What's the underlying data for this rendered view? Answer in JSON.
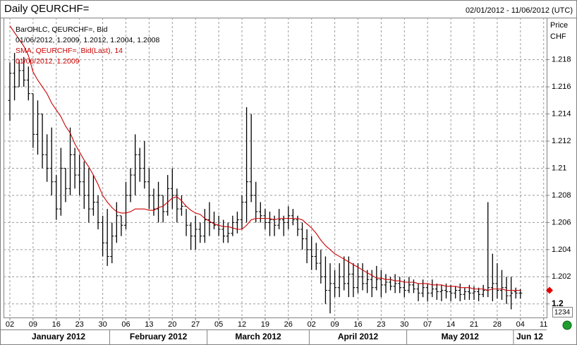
{
  "chart_data": {
    "type": "ohlc",
    "title": "Daily QEURCHF=",
    "subtitle": "02/01/2012 - 11/06/2012 (UTC)",
    "legend": [
      "BarOHLC, QEURCHF=, Bid",
      "01/06/2012, 1.2009, 1.2012, 1.2004, 1.2008",
      "SMA, QEURCHF=, Bid(Last),  14",
      "01/06/2012, 1.2009"
    ],
    "ylabel": "Price",
    "yunit": "CHF",
    "ylim": [
      1.199,
      1.2211
    ],
    "yticks": [
      1.2,
      1.202,
      1.204,
      1.206,
      1.208,
      1.21,
      1.212,
      1.214,
      1.216,
      1.218
    ],
    "grid": true,
    "months": [
      "January 2012",
      "February 2012",
      "March 2012",
      "April 2012",
      "May 2012",
      "Jun 12"
    ],
    "badge": "1234",
    "categories": [
      "02",
      null,
      null,
      null,
      null,
      "09",
      null,
      null,
      null,
      null,
      "16",
      null,
      null,
      null,
      null,
      "23",
      null,
      null,
      null,
      null,
      "30",
      null,
      null,
      null,
      null,
      "06",
      null,
      null,
      null,
      null,
      "13",
      null,
      null,
      null,
      null,
      "20",
      null,
      null,
      null,
      null,
      "27",
      null,
      null,
      null,
      null,
      "05",
      null,
      null,
      null,
      null,
      "12",
      null,
      null,
      null,
      null,
      "19",
      null,
      null,
      null,
      null,
      "26",
      null,
      null,
      null,
      null,
      "02",
      null,
      null,
      null,
      null,
      "09",
      null,
      null,
      null,
      null,
      "16",
      null,
      null,
      null,
      null,
      "23",
      null,
      null,
      null,
      null,
      "30",
      null,
      null,
      null,
      null,
      "07",
      null,
      null,
      null,
      null,
      "14",
      null,
      null,
      null,
      null,
      "21",
      null,
      null,
      null,
      null,
      "28",
      null,
      null,
      null,
      null,
      "04",
      null,
      null,
      null,
      null,
      "11"
    ],
    "ohlc": {
      "color": "#000000",
      "open": [
        1.215,
        1.217,
        1.216,
        1.2172,
        1.2165,
        1.2155,
        1.2125,
        1.214,
        1.211,
        1.21,
        1.209,
        1.207,
        1.21,
        1.2085,
        1.211,
        1.2095,
        1.209,
        1.208,
        1.207,
        1.2075,
        1.206,
        1.2045,
        1.2035,
        1.205,
        1.2065,
        1.2058,
        1.208,
        1.2095,
        1.211,
        1.21,
        1.209,
        1.208,
        1.207,
        1.208,
        1.2068,
        1.2085,
        1.208,
        1.207,
        1.2072,
        1.2058,
        1.205,
        1.2055,
        1.205,
        1.2062,
        1.206,
        1.2058,
        1.2055,
        1.205,
        1.2052,
        1.206,
        1.2062,
        1.2075,
        1.209,
        1.208,
        1.2068,
        1.2065,
        1.206,
        1.2062,
        1.2058,
        1.2062,
        1.206,
        1.2065,
        1.2062,
        1.2055,
        1.2048,
        1.204,
        1.2035,
        1.203,
        1.202,
        1.201,
        1.2015,
        1.2012,
        1.202,
        1.2015,
        1.2022,
        1.2012,
        1.202,
        1.2015,
        1.2018,
        1.2012,
        1.2018,
        1.2014,
        1.2016,
        1.2013,
        1.2015,
        1.2012,
        1.201,
        1.2014,
        1.2011,
        1.2008,
        1.2012,
        1.2008,
        1.2011,
        1.2009,
        1.201,
        1.2009,
        1.2008,
        1.201,
        1.2007,
        1.2009,
        1.2008,
        1.2009,
        1.2007,
        1.201,
        1.2012,
        1.2015,
        1.201,
        1.2012,
        1.2006,
        1.2009,
        1.2008,
        null,
        null,
        null,
        null,
        null
      ],
      "high": [
        1.2178,
        1.2185,
        1.218,
        1.2182,
        1.2175,
        1.2155,
        1.215,
        1.214,
        1.2125,
        1.213,
        1.2095,
        1.2115,
        1.21,
        1.213,
        1.2115,
        1.211,
        1.2105,
        1.21,
        1.2095,
        1.208,
        1.2065,
        1.207,
        1.206,
        1.2075,
        1.2065,
        1.209,
        1.21,
        1.2125,
        1.2115,
        1.212,
        1.21,
        1.2085,
        1.209,
        1.208,
        1.2095,
        1.21,
        1.2085,
        1.208,
        1.207,
        1.206,
        1.2065,
        1.206,
        1.207,
        1.2075,
        1.2068,
        1.2065,
        1.2062,
        1.206,
        1.2065,
        1.2068,
        1.208,
        1.2145,
        1.214,
        1.209,
        1.2075,
        1.207,
        1.2068,
        1.2065,
        1.207,
        1.2065,
        1.2072,
        1.207,
        1.2065,
        1.206,
        1.2055,
        1.205,
        1.2045,
        1.204,
        1.2035,
        1.203,
        1.2025,
        1.203,
        1.2035,
        1.2035,
        1.203,
        1.203,
        1.203,
        1.2025,
        1.2025,
        1.2028,
        1.2025,
        1.2022,
        1.202,
        1.2022,
        1.202,
        1.2018,
        1.202,
        1.2018,
        1.2015,
        1.2018,
        1.2015,
        1.2018,
        1.2015,
        1.2014,
        1.2015,
        1.2014,
        1.2013,
        1.2015,
        1.2012,
        1.2014,
        1.2013,
        1.2012,
        1.2014,
        1.2075,
        1.2037,
        1.203,
        1.2025,
        1.202,
        1.202,
        1.2012,
        1.2011,
        null,
        null,
        null,
        null,
        null
      ],
      "low": [
        1.2135,
        1.215,
        1.216,
        1.216,
        1.215,
        1.2115,
        1.211,
        1.21,
        1.209,
        1.208,
        1.2062,
        1.2065,
        1.2075,
        1.208,
        1.2085,
        1.208,
        1.207,
        1.206,
        1.2065,
        1.2055,
        1.2035,
        1.2028,
        1.203,
        1.2045,
        1.205,
        1.2055,
        1.2075,
        1.208,
        1.209,
        1.2085,
        1.207,
        1.2065,
        1.206,
        1.206,
        1.2065,
        1.207,
        1.206,
        1.2065,
        1.205,
        1.204,
        1.204,
        1.2045,
        1.2045,
        1.205,
        1.2055,
        1.205,
        1.2045,
        1.2045,
        1.205,
        1.2052,
        1.2055,
        1.206,
        1.2075,
        1.206,
        1.206,
        1.2055,
        1.205,
        1.205,
        1.2055,
        1.205,
        1.2055,
        1.2058,
        1.205,
        1.204,
        1.203,
        1.2025,
        1.2025,
        1.2015,
        1.2,
        1.1993,
        1.2005,
        1.2005,
        1.201,
        1.2005,
        1.2005,
        1.2008,
        1.201,
        1.2008,
        1.2005,
        1.201,
        1.2005,
        1.2008,
        1.201,
        1.2008,
        1.2008,
        1.2005,
        1.2008,
        1.2008,
        1.2002,
        1.2005,
        1.2002,
        1.2005,
        1.2003,
        1.2002,
        1.2004,
        1.2002,
        1.2004,
        1.2002,
        1.2003,
        1.2003,
        1.2003,
        1.2002,
        1.2005,
        1.2005,
        1.2002,
        1.2004,
        1.2003,
        1.2,
        1.1996,
        1.2004,
        1.2004,
        null,
        null,
        null,
        null,
        null
      ],
      "close": [
        1.217,
        1.216,
        1.2172,
        1.2165,
        1.2155,
        1.2125,
        1.214,
        1.211,
        1.21,
        1.209,
        1.207,
        1.21,
        1.2085,
        1.211,
        1.2095,
        1.209,
        1.208,
        1.207,
        1.2075,
        1.206,
        1.2045,
        1.2035,
        1.205,
        1.2065,
        1.2058,
        1.208,
        1.2095,
        1.211,
        1.21,
        1.209,
        1.208,
        1.207,
        1.208,
        1.2068,
        1.2085,
        1.208,
        1.207,
        1.2072,
        1.2058,
        1.205,
        1.2055,
        1.205,
        1.2062,
        1.206,
        1.2058,
        1.2055,
        1.205,
        1.2052,
        1.206,
        1.2062,
        1.2075,
        1.209,
        1.208,
        1.2068,
        1.2065,
        1.206,
        1.2062,
        1.2058,
        1.2062,
        1.206,
        1.2065,
        1.2062,
        1.2055,
        1.2048,
        1.204,
        1.2035,
        1.203,
        1.202,
        1.201,
        1.2015,
        1.2012,
        1.202,
        1.2015,
        1.2022,
        1.2012,
        1.202,
        1.2015,
        1.2018,
        1.2012,
        1.2018,
        1.2014,
        1.2016,
        1.2013,
        1.2015,
        1.2012,
        1.201,
        1.2014,
        1.2011,
        1.2008,
        1.2012,
        1.2008,
        1.2011,
        1.2009,
        1.201,
        1.2009,
        1.2008,
        1.201,
        1.2007,
        1.2009,
        1.2008,
        1.2009,
        1.2007,
        1.201,
        1.2012,
        1.2015,
        1.201,
        1.2012,
        1.2006,
        1.2008,
        1.2008,
        1.2008,
        null,
        null,
        null,
        null,
        null
      ]
    },
    "sma": {
      "color": "#cc0000",
      "values": [
        1.2205,
        1.22,
        1.2195,
        1.219,
        1.2183,
        1.2171,
        1.2165,
        1.216,
        1.2155,
        1.2148,
        1.2143,
        1.2138,
        1.2131,
        1.2126,
        1.2118,
        1.2112,
        1.2106,
        1.2101,
        1.2095,
        1.2088,
        1.208,
        1.2075,
        1.2071,
        1.2068,
        1.2067,
        1.2067,
        1.2068,
        1.207,
        1.207,
        1.207,
        1.2069,
        1.2069,
        1.2071,
        1.2072,
        1.2075,
        1.2078,
        1.2079,
        1.2076,
        1.2072,
        1.2069,
        1.2067,
        1.2066,
        1.2063,
        1.2061,
        1.2059,
        1.2058,
        1.2057,
        1.2057,
        1.2056,
        1.2055,
        1.2055,
        1.2058,
        1.2062,
        1.2063,
        1.2063,
        1.2063,
        1.2063,
        1.2062,
        1.2063,
        1.2063,
        1.2063,
        1.2063,
        1.2063,
        1.2062,
        1.2059,
        1.2056,
        1.2052,
        1.2047,
        1.2043,
        1.204,
        1.2037,
        1.2035,
        1.2033,
        1.2031,
        1.2029,
        1.2027,
        1.2025,
        1.2023,
        1.2021,
        1.2019,
        1.2019,
        1.2018,
        1.2018,
        1.2017,
        1.2017,
        1.2016,
        1.2016,
        1.2016,
        1.2015,
        1.2015,
        1.2015,
        1.2014,
        1.2014,
        1.2014,
        1.2013,
        1.2013,
        1.2013,
        1.2012,
        1.2012,
        1.2012,
        1.2011,
        1.2011,
        1.2011,
        1.201,
        1.2011,
        1.2011,
        1.2011,
        1.201,
        1.201,
        1.201,
        1.201,
        null,
        null,
        null,
        null,
        null
      ]
    }
  }
}
